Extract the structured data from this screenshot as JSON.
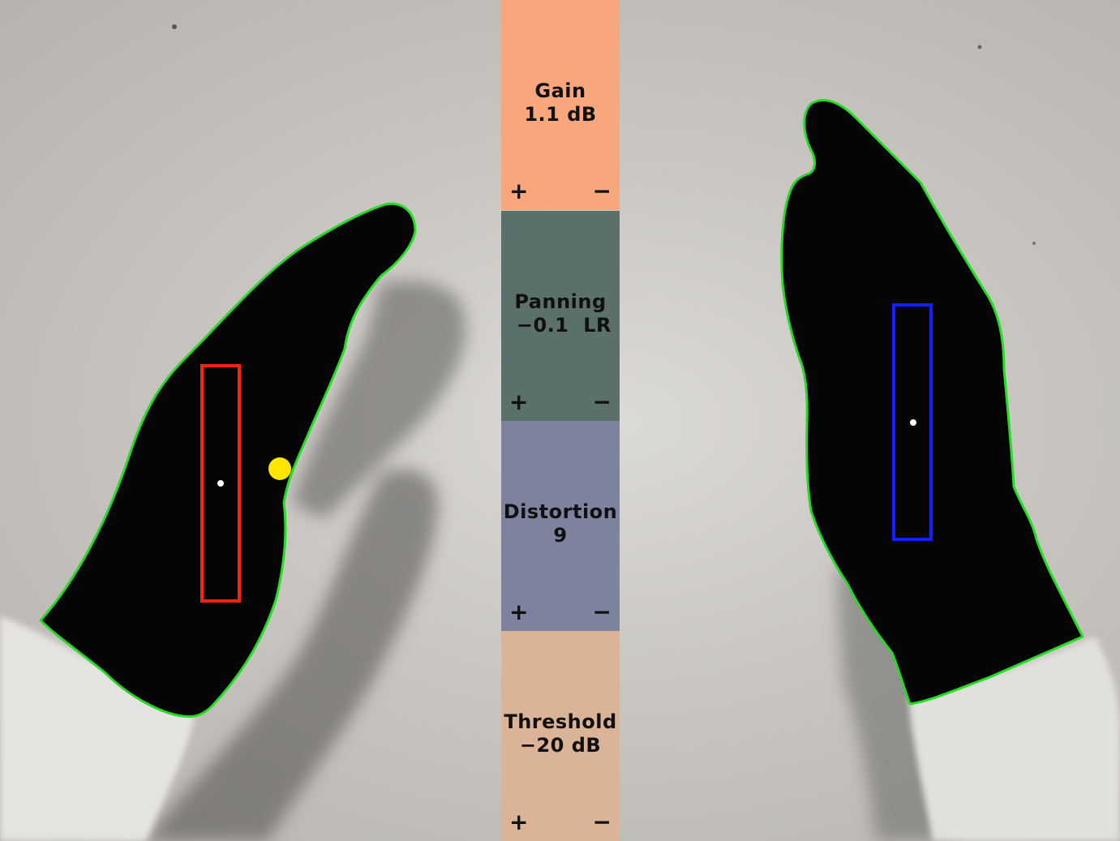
{
  "controls": [
    {
      "id": "gain",
      "name": "Gain",
      "value": "1.1 dB",
      "plus": "+",
      "minus": "−",
      "color": "#f8a67c"
    },
    {
      "id": "panning",
      "name": "Panning",
      "value": " −0.1  LR",
      "plus": "+",
      "minus": "−",
      "color": "#5b706a"
    },
    {
      "id": "distortion",
      "name": "Distortion",
      "value": "9",
      "plus": "+",
      "minus": "−",
      "color": "#7d839e"
    },
    {
      "id": "threshold",
      "name": "Threshold",
      "value": "−20 dB",
      "plus": "+",
      "minus": "−",
      "color": "#dbb396"
    }
  ],
  "overlay": {
    "contour_color": "#22dd22",
    "left_box_color": "#ff2010",
    "right_box_color": "#1020ff",
    "marker_color": "#ffe600"
  }
}
